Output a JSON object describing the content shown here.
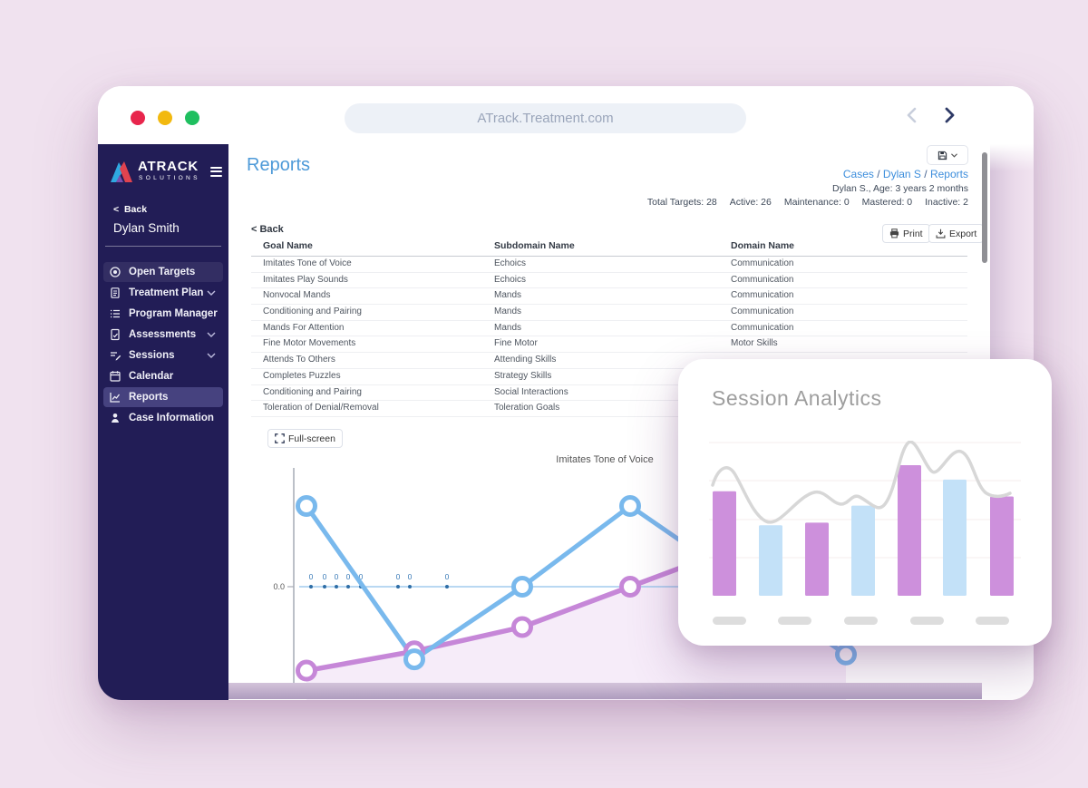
{
  "browser": {
    "url": "ATrack.Treatment.com",
    "back_icon": "chevron-left-icon",
    "forward_icon": "chevron-right-icon"
  },
  "sidebar": {
    "brand_name": "ATRACK",
    "brand_sub": "SOLUTIONS",
    "back_label": "Back",
    "user_name": "Dylan Smith",
    "items": [
      {
        "label": "Open Targets",
        "icon": "target-icon",
        "expandable": false,
        "state": "active-soft"
      },
      {
        "label": "Treatment Plan",
        "icon": "clipboard-icon",
        "expandable": true,
        "state": ""
      },
      {
        "label": "Program Manager",
        "icon": "list-icon",
        "expandable": false,
        "state": ""
      },
      {
        "label": "Assessments",
        "icon": "assessment-icon",
        "expandable": true,
        "state": ""
      },
      {
        "label": "Sessions",
        "icon": "sessions-icon",
        "expandable": true,
        "state": ""
      },
      {
        "label": "Calendar",
        "icon": "calendar-icon",
        "expandable": false,
        "state": ""
      },
      {
        "label": "Reports",
        "icon": "line-chart-icon",
        "expandable": false,
        "state": "selected"
      },
      {
        "label": "Case Information",
        "icon": "person-icon",
        "expandable": false,
        "state": ""
      }
    ]
  },
  "header": {
    "page_title": "Reports",
    "breadcrumb": [
      "Cases",
      "Dylan S",
      "Reports"
    ],
    "patient_info": "Dylan S., Age: 3 years 2 months",
    "stats": [
      {
        "label": "Total Targets",
        "value": "28"
      },
      {
        "label": "Active",
        "value": "26"
      },
      {
        "label": "Maintenance",
        "value": "0"
      },
      {
        "label": "Mastered",
        "value": "0"
      },
      {
        "label": "Inactive",
        "value": "2"
      }
    ]
  },
  "toolbar": {
    "back_label": "Back",
    "print_label": "Print",
    "print_icon": "printer-icon",
    "export_label": "Export",
    "export_icon": "export-icon",
    "fullscreen_label": "Full-screen",
    "fullscreen_icon": "expand-icon",
    "save_icon": "floppy-disk-icon"
  },
  "table": {
    "headers": [
      "Goal Name",
      "Subdomain Name",
      "Domain Name"
    ],
    "rows": [
      [
        "Imitates Tone of Voice",
        "Echoics",
        "Communication"
      ],
      [
        "Imitates Play Sounds",
        "Echoics",
        "Communication"
      ],
      [
        "Nonvocal Mands",
        "Mands",
        "Communication"
      ],
      [
        "Conditioning and Pairing",
        "Mands",
        "Communication"
      ],
      [
        "Mands For Attention",
        "Mands",
        "Communication"
      ],
      [
        "Fine Motor Movements",
        "Fine Motor",
        "Motor Skills"
      ],
      [
        "Attends To Others",
        "Attending Skills",
        ""
      ],
      [
        "Completes Puzzles",
        "Strategy Skills",
        ""
      ],
      [
        "Conditioning and Pairing",
        "Social Interactions",
        ""
      ],
      [
        "Toleration of Denial/Removal",
        "Toleration Goals",
        ""
      ]
    ]
  },
  "analytics_card": {
    "title": "Session Analytics"
  },
  "colors": {
    "page_bg": "#F0E2EF",
    "sidebar_bg": "#221D56",
    "sidebar_selected": "#46427F",
    "accent_blue": "#3D8EDC",
    "title_blue": "#4E9AD8",
    "chart_blue": "#79B9ED",
    "chart_purple": "#C687D8",
    "bar_purple": "#CD90DC",
    "bar_blue": "#C3E1F8",
    "curve_gray": "#D7D7D7"
  },
  "chart_data": [
    {
      "type": "line",
      "title": "Imitates Tone of Voice",
      "y_tick_labels": [
        "0.0"
      ],
      "ylim": [
        -0.65,
        0.75
      ],
      "grid": false,
      "legend": "none",
      "series": [
        {
          "name": "blue-series",
          "color": "#79B9ED",
          "values": [
            0.5,
            -0.45,
            0.0,
            0.5,
            -0.42
          ]
        },
        {
          "name": "purple-series",
          "color": "#C687D8",
          "values": [
            -0.52,
            -0.4,
            -0.25,
            0.0
          ],
          "area_fill": true
        },
        {
          "name": "zero-baseline",
          "color": "#2E6DA6",
          "values": [
            0,
            0,
            0,
            0,
            0,
            0,
            0,
            0
          ],
          "point_labels": [
            "0",
            "0",
            "0",
            "0",
            "0",
            "0",
            "0",
            "0"
          ]
        }
      ]
    },
    {
      "type": "bar",
      "title": "Session Analytics",
      "values": [
        0.8,
        0.54,
        0.56,
        0.69,
        1.0,
        0.89,
        0.76
      ],
      "bar_colors": [
        "purple",
        "blue",
        "purple",
        "blue",
        "purple",
        "blue",
        "purple"
      ],
      "palette": {
        "purple": "#CD90DC",
        "blue": "#C3E1F8"
      },
      "overlay": "decorative gray wavy line",
      "ylim": [
        0,
        1.05
      ],
      "grid": true
    }
  ]
}
